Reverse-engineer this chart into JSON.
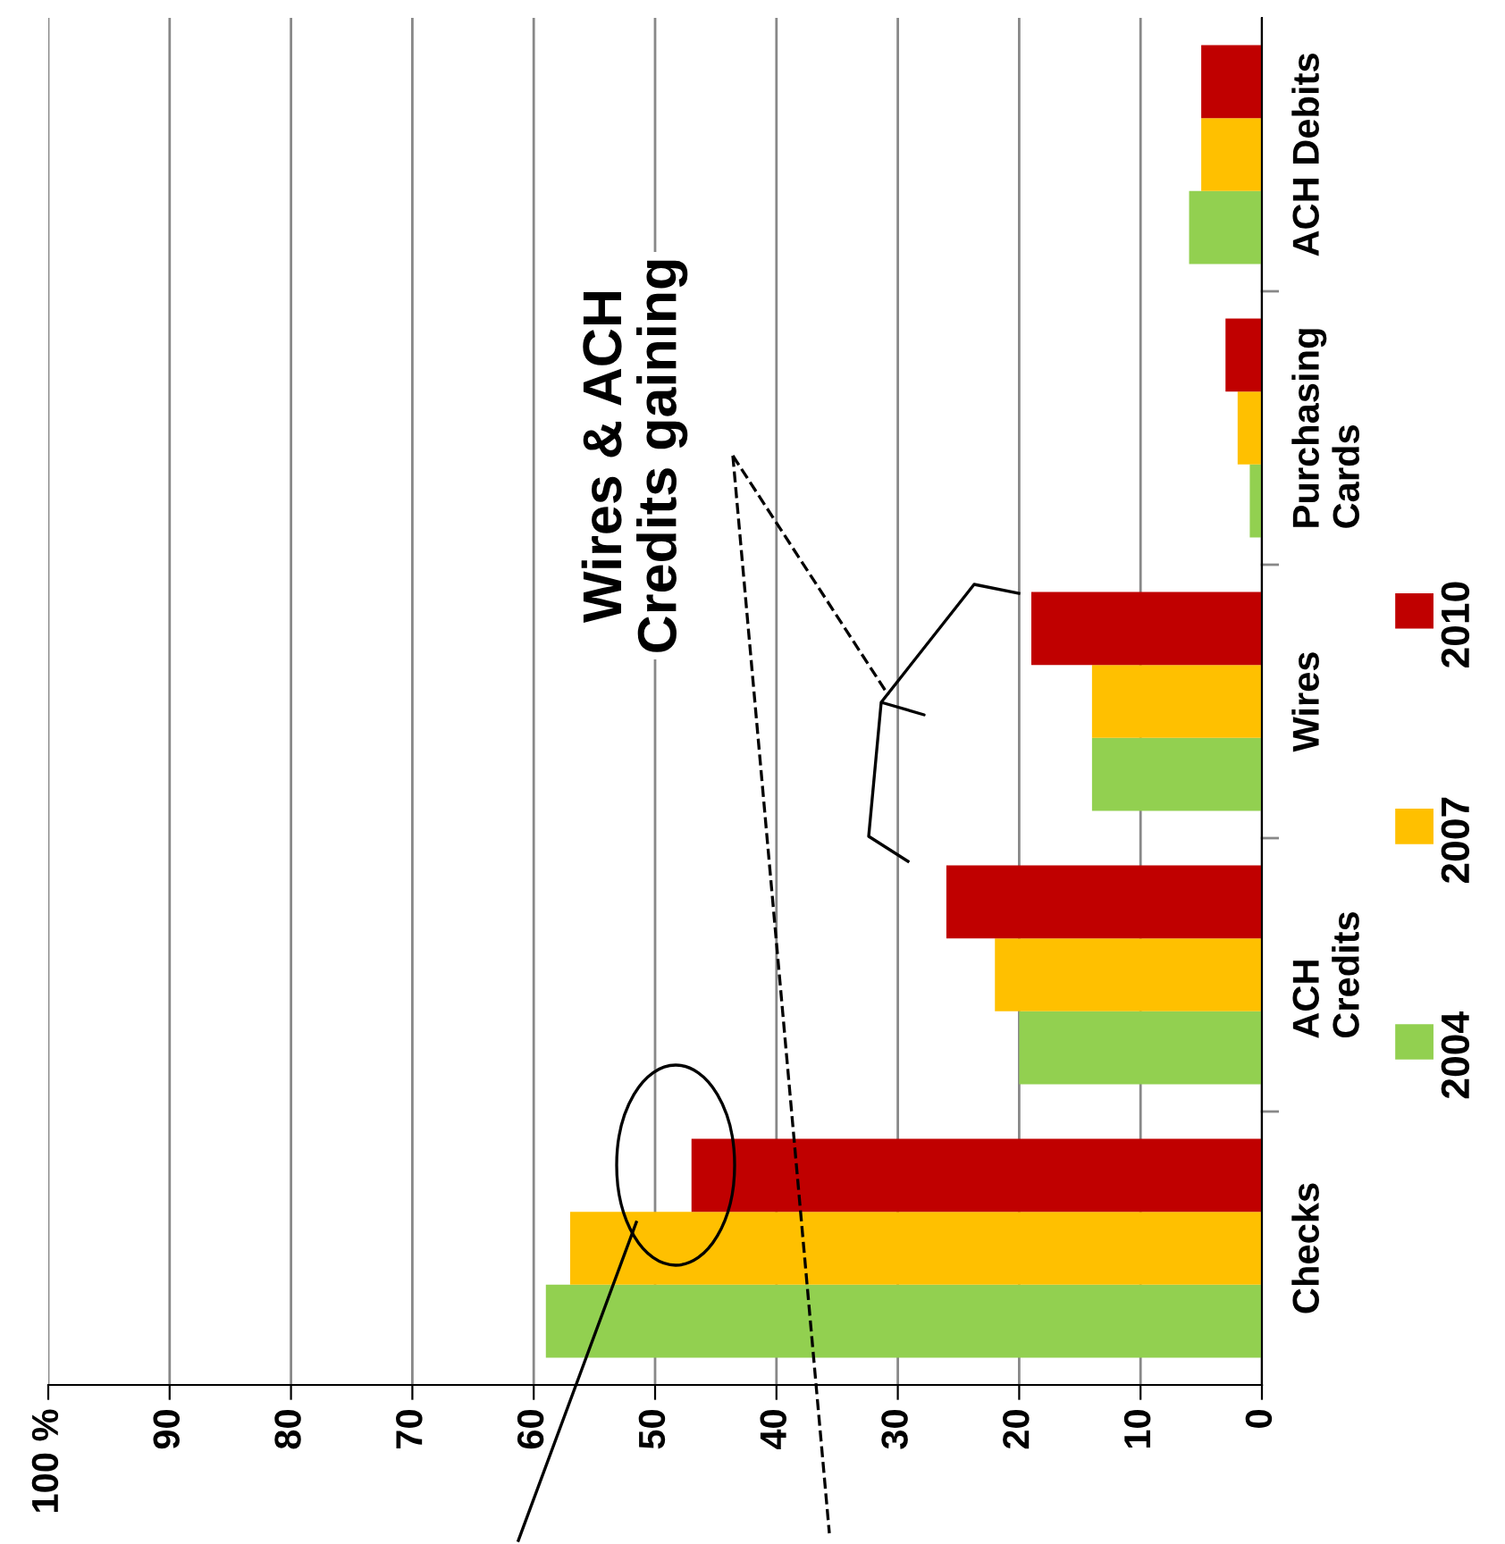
{
  "chart_data": {
    "type": "bar",
    "orientation": "horizontal",
    "categories": [
      "ACH Debits",
      "Purchasing\nCards",
      "Wires",
      "ACH\nCredits",
      "Checks"
    ],
    "series": [
      {
        "name": "2004",
        "color": "#92d050",
        "values": [
          6,
          1,
          14,
          20,
          59
        ]
      },
      {
        "name": "2007",
        "color": "#ffc000",
        "values": [
          5,
          2,
          14,
          22,
          57
        ]
      },
      {
        "name": "2010",
        "color": "#c00000",
        "values": [
          5,
          3,
          19,
          26,
          47
        ]
      }
    ],
    "xlim": [
      100,
      0
    ],
    "xticks": [
      0,
      10,
      20,
      30,
      40,
      50,
      60,
      70,
      80,
      90,
      {
        "value": 100,
        "label": "100 %"
      }
    ],
    "grid": "x",
    "legend": "right",
    "annotations": [
      "Wires & ACH\nCredits gaining"
    ]
  }
}
